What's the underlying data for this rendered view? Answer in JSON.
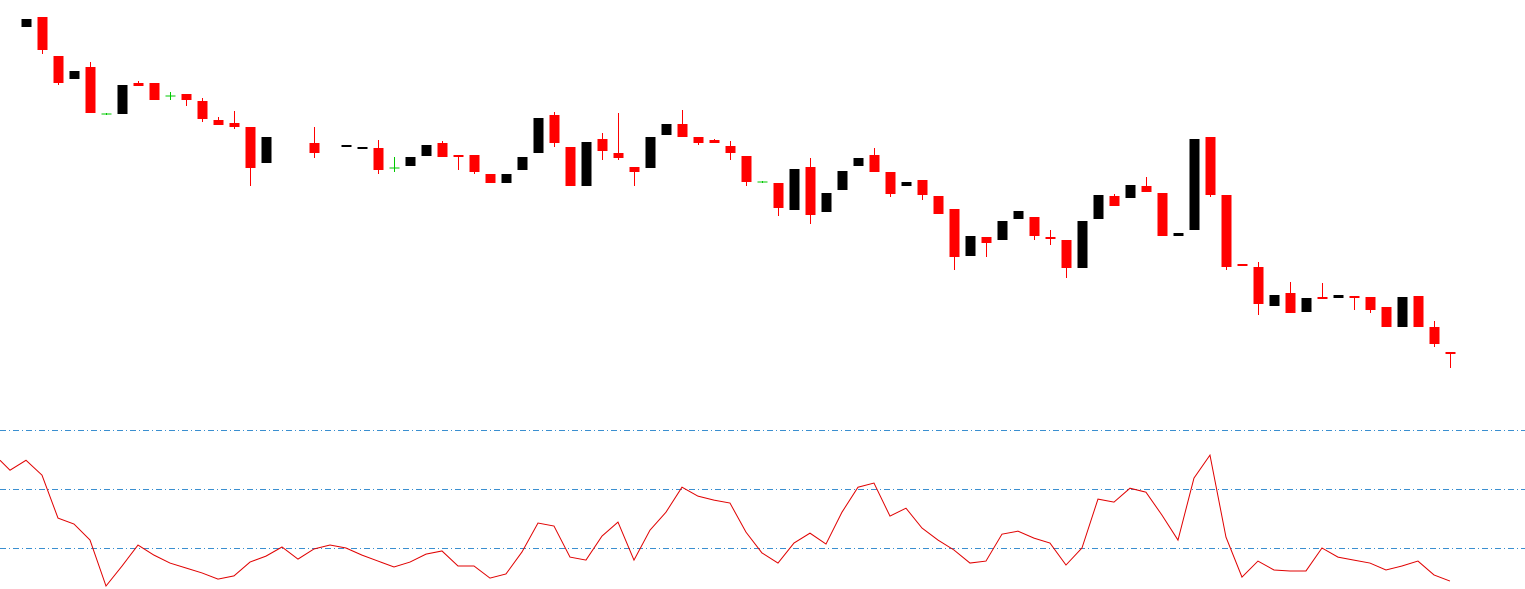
{
  "chart_data": [
    {
      "type": "candlestick",
      "x": [
        0,
        1,
        2,
        3,
        4,
        5,
        6,
        7,
        8,
        9,
        10,
        11,
        12,
        13,
        14,
        15,
        18,
        20,
        21,
        22,
        23,
        24,
        25,
        26,
        27,
        28,
        29,
        30,
        31,
        32,
        33,
        34,
        35,
        36,
        37,
        38,
        39,
        40,
        41,
        42,
        43,
        44,
        45,
        46,
        47,
        48,
        49,
        50,
        51,
        52,
        53,
        54,
        55,
        56,
        57,
        58,
        59,
        60,
        61,
        62,
        63,
        64,
        65,
        66,
        67,
        68,
        69,
        70,
        71,
        72,
        73,
        74,
        75,
        76,
        77,
        78,
        79,
        80,
        81,
        82,
        83,
        84,
        85,
        86,
        87,
        88,
        89
      ],
      "open": [
        373,
        383,
        344,
        321,
        333,
        286,
        286,
        317,
        317,
        304,
        306,
        299,
        280,
        277,
        273,
        237,
        257,
        254,
        251,
        252,
        232,
        234,
        244,
        257,
        245,
        245,
        226,
        217,
        230,
        247,
        285,
        253,
        214,
        261,
        247,
        233,
        232,
        265,
        276,
        263,
        260,
        254,
        244,
        218,
        217,
        190,
        233,
        188,
        210,
        234,
        245,
        228,
        214,
        220,
        204,
        191,
        144,
        163,
        160,
        181,
        183,
        163,
        160,
        132,
        181,
        204,
        202,
        214,
        207,
        164,
        170,
        263,
        205,
        136,
        133,
        94,
        107,
        88,
        103,
        102,
        104,
        103,
        93,
        73,
        104,
        73,
        48
      ],
      "high": [
        381,
        383,
        344,
        329,
        338,
        287,
        315,
        319,
        317,
        308,
        306,
        302,
        283,
        289,
        273,
        263,
        273,
        255,
        253,
        260,
        243,
        243,
        255,
        259,
        245,
        245,
        226,
        226,
        243,
        282,
        288,
        253,
        258,
        267,
        287,
        233,
        263,
        276,
        290,
        263,
        261,
        259,
        244,
        219,
        217,
        231,
        242,
        207,
        229,
        242,
        252,
        228,
        218,
        220,
        204,
        191,
        164,
        163,
        179,
        189,
        183,
        170,
        160,
        179,
        205,
        206,
        215,
        223,
        207,
        167,
        261,
        263,
        205,
        136,
        138,
        105,
        118,
        102,
        117,
        105,
        104,
        103,
        93,
        103,
        104,
        79,
        48
      ],
      "low": [
        373,
        346,
        315,
        321,
        287,
        285,
        286,
        314,
        300,
        300,
        294,
        278,
        275,
        271,
        214,
        237,
        242,
        254,
        251,
        226,
        228,
        234,
        244,
        243,
        230,
        226,
        217,
        217,
        230,
        247,
        253,
        214,
        214,
        240,
        240,
        214,
        232,
        265,
        263,
        255,
        257,
        240,
        214,
        217,
        184,
        190,
        176,
        188,
        210,
        234,
        228,
        203,
        214,
        200,
        186,
        130,
        144,
        143,
        160,
        181,
        160,
        155,
        122,
        132,
        181,
        194,
        202,
        208,
        164,
        164,
        170,
        203,
        130,
        134,
        85,
        94,
        87,
        88,
        101,
        102,
        90,
        87,
        73,
        73,
        73,
        53,
        32
      ],
      "close": [
        381,
        350,
        317,
        329,
        287,
        286,
        315,
        314,
        300,
        304,
        300,
        281,
        275,
        273,
        232,
        263,
        247,
        255,
        253,
        230,
        232,
        243,
        255,
        243,
        243,
        228,
        217,
        226,
        243,
        282,
        257,
        214,
        258,
        249,
        242,
        228,
        263,
        276,
        263,
        257,
        257,
        247,
        218,
        218,
        192,
        231,
        185,
        207,
        229,
        242,
        228,
        206,
        218,
        205,
        186,
        143,
        164,
        157,
        179,
        189,
        164,
        161,
        132,
        179,
        205,
        194,
        215,
        208,
        164,
        167,
        261,
        205,
        133,
        134,
        96,
        105,
        87,
        102,
        101,
        105,
        102,
        90,
        73,
        103,
        73,
        56,
        46
      ],
      "up_color": "#000000",
      "down_color": "#ff0000",
      "doji_color": "#00c800",
      "xlim": [
        -1.625,
        93.69
      ],
      "ylim": [
        0,
        400
      ]
    },
    {
      "type": "line",
      "x": [
        -1.625,
        -1,
        0,
        1,
        2,
        3,
        4,
        5,
        6,
        7,
        8,
        9,
        10,
        11,
        12,
        13,
        14,
        15,
        16,
        17,
        18,
        19,
        20,
        21,
        22,
        23,
        24,
        25,
        26,
        27,
        28,
        29,
        30,
        31,
        32,
        33,
        34,
        35,
        36,
        37,
        38,
        39,
        40,
        41,
        42,
        43,
        44,
        45,
        46,
        47,
        48,
        49,
        50,
        51,
        52,
        53,
        54,
        55,
        56,
        57,
        58,
        59,
        60,
        61,
        62,
        63,
        64,
        65,
        66,
        67,
        68,
        69,
        70,
        71,
        72,
        73,
        74,
        75,
        76,
        77,
        78,
        79,
        80,
        81,
        82,
        83,
        84,
        85,
        86,
        87,
        88,
        89
      ],
      "values": [
        64.5,
        59.5,
        64.5,
        57.0,
        35.3,
        32.3,
        24.2,
        1.0,
        11.1,
        21.7,
        16.6,
        12.6,
        10.1,
        7.6,
        4.5,
        6.1,
        13.1,
        16.1,
        20.7,
        14.6,
        19.7,
        21.7,
        20.2,
        16.6,
        13.6,
        10.6,
        13.1,
        17.1,
        18.7,
        11.1,
        11.1,
        5.0,
        7.1,
        18.2,
        32.8,
        31.3,
        15.6,
        14.1,
        26.2,
        33.3,
        14.1,
        29.2,
        38.3,
        50.9,
        46.4,
        44.4,
        42.9,
        28.2,
        17.7,
        12.6,
        22.7,
        27.7,
        22.2,
        38.3,
        50.9,
        53.0,
        36.3,
        40.3,
        30.3,
        24.2,
        19.2,
        12.6,
        13.6,
        27.2,
        28.7,
        25.2,
        22.7,
        11.6,
        20.2,
        44.9,
        43.4,
        50.4,
        48.4,
        36.8,
        24.2,
        55.5,
        67.1,
        25.7,
        5.5,
        13.6,
        9.1,
        8.6,
        8.6,
        20.2,
        15.6,
        14.1,
        12.6,
        9.1,
        11.1,
        13.6,
        6.6,
        3.5
      ],
      "color": "#e00000",
      "levels": [
        80,
        50,
        20
      ],
      "level_color": "#3a8fd0",
      "xlim": [
        -1.625,
        93.69
      ],
      "ylim": [
        0,
        100
      ]
    }
  ]
}
